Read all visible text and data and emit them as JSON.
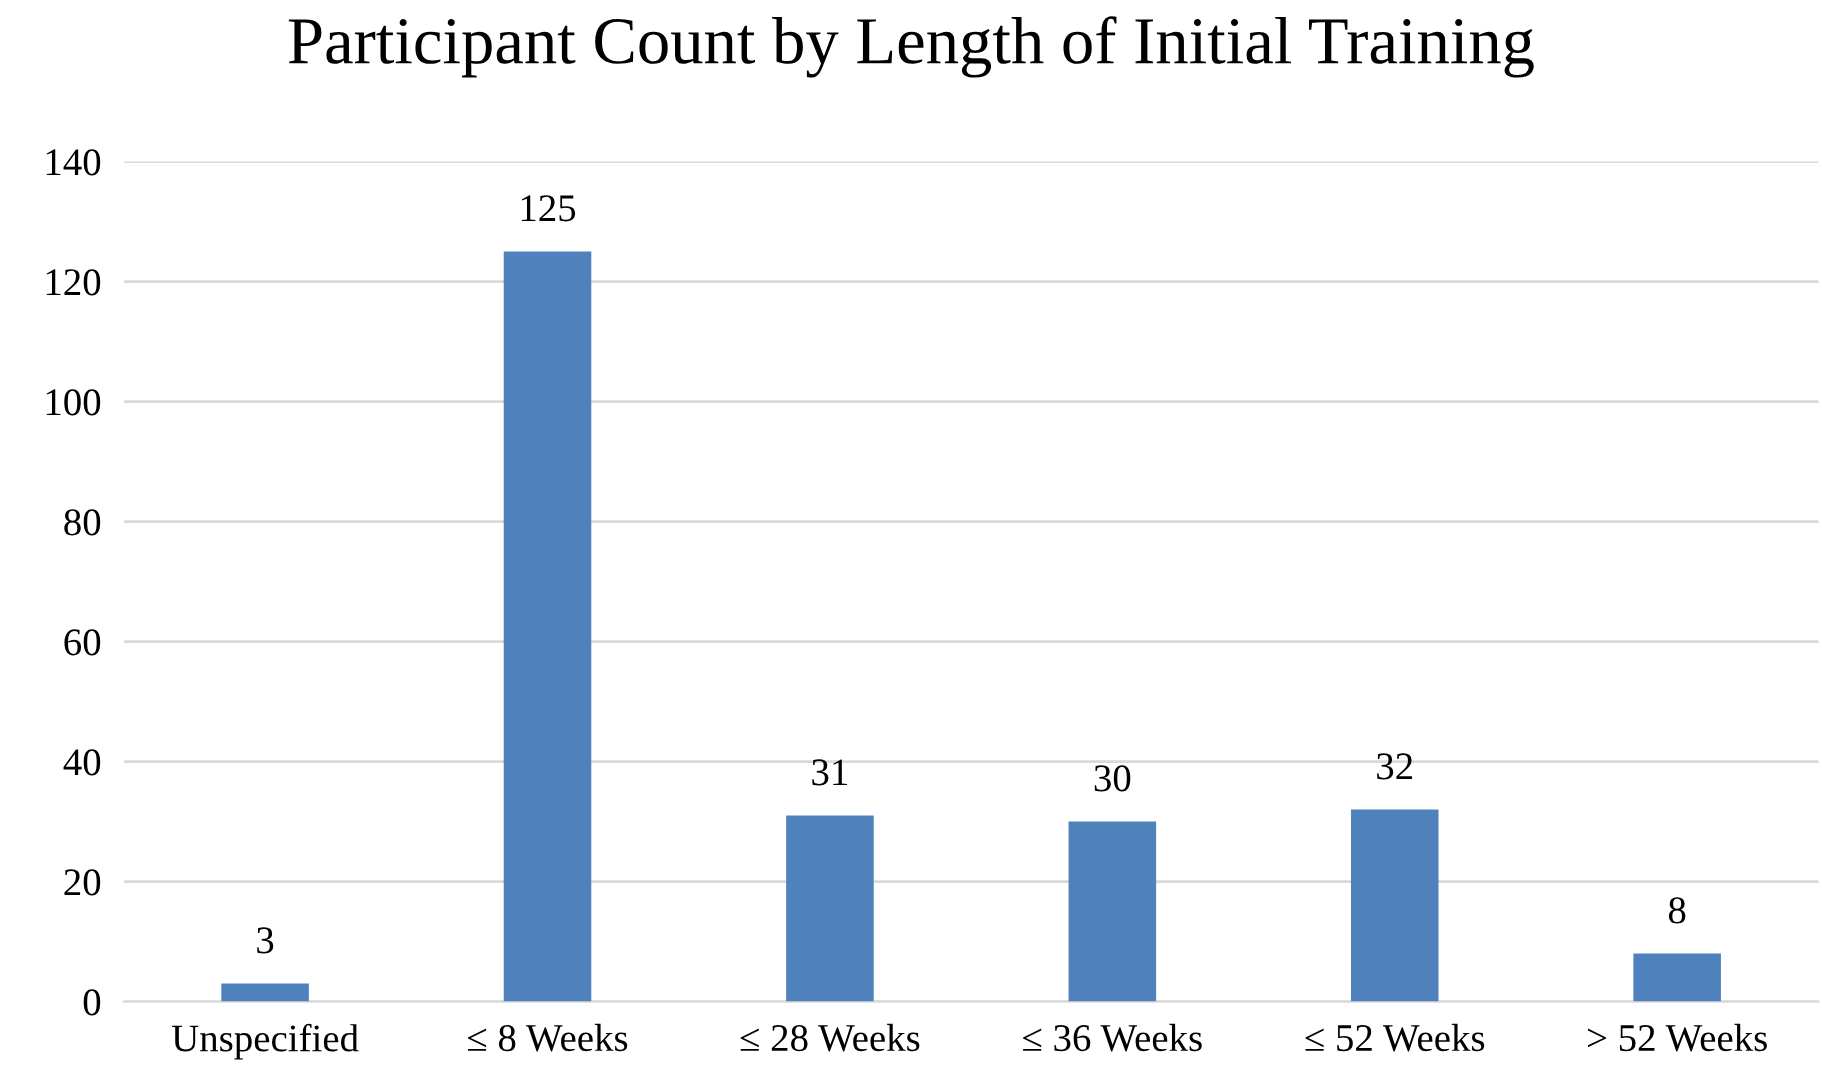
{
  "chart_data": {
    "type": "bar",
    "title": "Participant Count by Length of Initial Training",
    "categories": [
      "Unspecified",
      "≤ 8 Weeks",
      "≤ 28 Weeks",
      "≤ 36 Weeks",
      "≤ 52 Weeks",
      "> 52 Weeks"
    ],
    "values": [
      3,
      125,
      31,
      30,
      32,
      8
    ],
    "color": "#4f81bd",
    "ylim": [
      0,
      140
    ],
    "yticks": [
      0,
      20,
      40,
      60,
      80,
      100,
      120,
      140
    ],
    "grid": "y",
    "data_labels": true,
    "legend": false
  }
}
